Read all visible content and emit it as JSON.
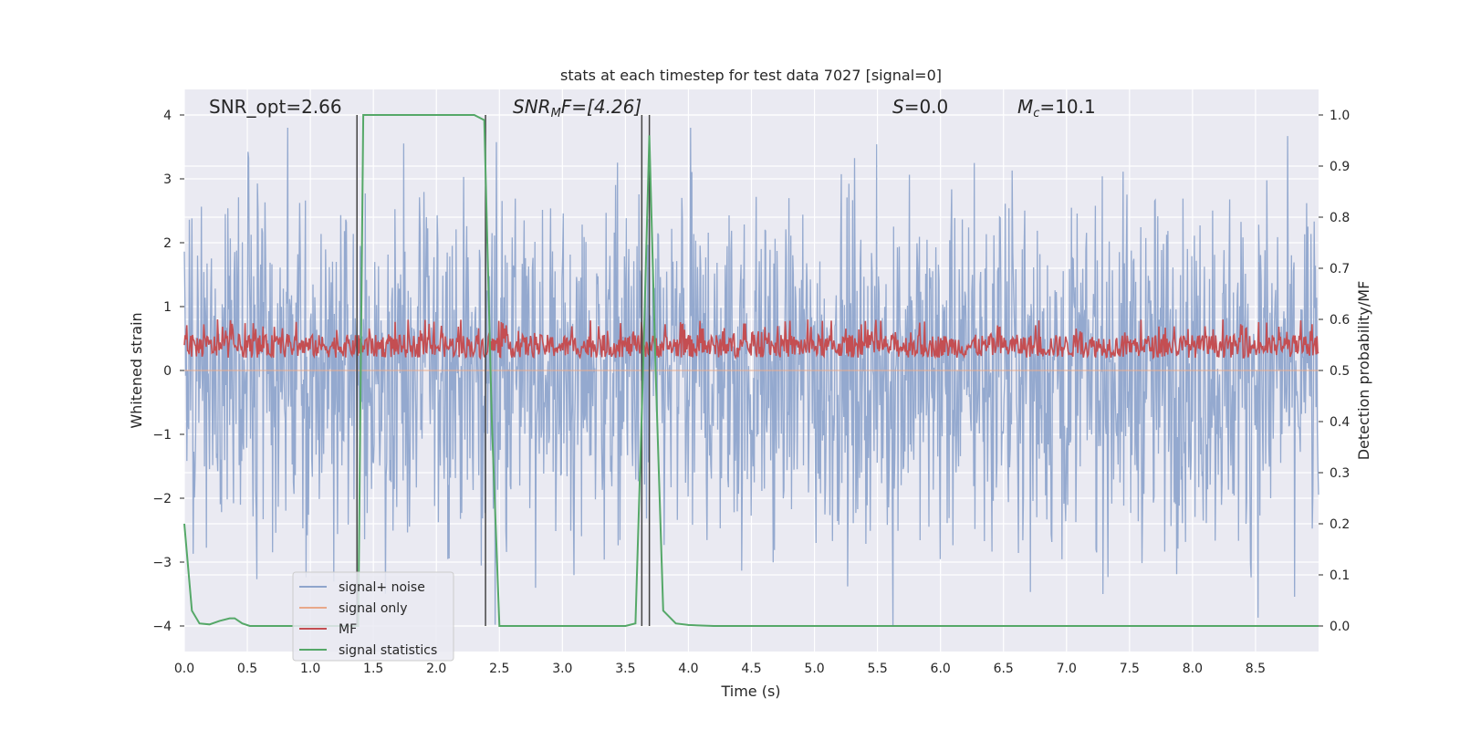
{
  "chart_data": {
    "type": "line",
    "title": "stats at each timestep for test data 7027 [signal=0]",
    "xlabel": "Time (s)",
    "ylabel_left": "Whitened strain",
    "ylabel_right": "Detection probability/MF",
    "xlim": [
      0,
      9.0
    ],
    "ylim_left": [
      -4.4,
      4.4
    ],
    "ylim_right": [
      -0.05,
      1.05
    ],
    "x_ticks": [
      0.0,
      0.5,
      1.0,
      1.5,
      2.0,
      2.5,
      3.0,
      3.5,
      4.0,
      4.5,
      5.0,
      5.5,
      6.0,
      6.5,
      7.0,
      7.5,
      8.0,
      8.5
    ],
    "x_tick_labels": [
      "0.0",
      "0.5",
      "1.0",
      "1.5",
      "2.0",
      "2.5",
      "3.0",
      "3.5",
      "4.0",
      "4.5",
      "5.0",
      "5.5",
      "6.0",
      "6.5",
      "7.0",
      "7.5",
      "8.0",
      "8.5"
    ],
    "y_left_ticks": [
      4,
      3,
      2,
      1,
      0,
      -1,
      -2,
      -3,
      -4
    ],
    "y_left_tick_labels": [
      "4",
      "3",
      "2",
      "1",
      "0",
      "−1",
      "−2",
      "−3",
      "−4"
    ],
    "y_right_ticks": [
      1.0,
      0.9,
      0.8,
      0.7,
      0.6,
      0.5,
      0.4,
      0.3,
      0.2,
      0.1,
      0.0
    ],
    "y_right_tick_labels": [
      "1.0",
      "0.9",
      "0.8",
      "0.7",
      "0.6",
      "0.5",
      "0.4",
      "0.3",
      "0.2",
      "0.1",
      "0.0"
    ],
    "annotations": {
      "snr_opt": "SNR_opt=2.66",
      "snr_mf_main": "SNR",
      "snr_mf_sub": "M",
      "snr_mf_rest": "F=[4.26]",
      "s_main": "S",
      "s_rest": "=0.0",
      "mc_main": "M",
      "mc_sub": "c",
      "mc_rest": "=10.1"
    },
    "series": [
      {
        "name": "signal+ noise",
        "color": "#8fa5cc",
        "kind": "noise",
        "amplitude_range": [
          -4.0,
          3.8
        ]
      },
      {
        "name": "signal only",
        "color": "#e8a88a",
        "kind": "flat",
        "value": 0
      },
      {
        "name": "MF",
        "color": "#c44e52",
        "kind": "band",
        "range_right_axis": [
          0.5,
          0.6
        ]
      },
      {
        "name": "signal statistics",
        "color": "#55a868",
        "kind": "line",
        "x": [
          0.0,
          0.06,
          0.12,
          0.2,
          0.28,
          0.36,
          0.4,
          0.46,
          0.52,
          0.6,
          1.0,
          1.3,
          1.38,
          1.42,
          1.5,
          2.0,
          2.3,
          2.38,
          2.44,
          2.5,
          3.0,
          3.5,
          3.58,
          3.64,
          3.69,
          3.74,
          3.8,
          3.9,
          4.0,
          4.2,
          5.0,
          9.0
        ],
        "y": [
          0.2,
          0.03,
          0.005,
          0.003,
          0.01,
          0.015,
          0.015,
          0.005,
          0.0,
          0.0,
          0.0,
          0.0,
          0.0,
          1.0,
          1.0,
          1.0,
          1.0,
          0.99,
          0.4,
          0.0,
          0.0,
          0.0,
          0.005,
          0.5,
          0.96,
          0.5,
          0.03,
          0.005,
          0.002,
          0.0,
          0.0,
          0.0
        ]
      },
      {
        "name": "marker lines",
        "color": "#444444",
        "kind": "vlines",
        "x": [
          1.37,
          2.39,
          3.63,
          3.69
        ]
      }
    ],
    "legend": {
      "position": "lower-left",
      "entries": [
        {
          "label": "signal+ noise",
          "color": "#8fa5cc"
        },
        {
          "label": "signal only",
          "color": "#e8a88a"
        },
        {
          "label": "MF",
          "color": "#c44e52"
        },
        {
          "label": "signal statistics",
          "color": "#55a868"
        }
      ]
    },
    "colors": {
      "plot_bg": "#eaeaf2",
      "grid": "#ffffff",
      "text": "#262626"
    }
  }
}
